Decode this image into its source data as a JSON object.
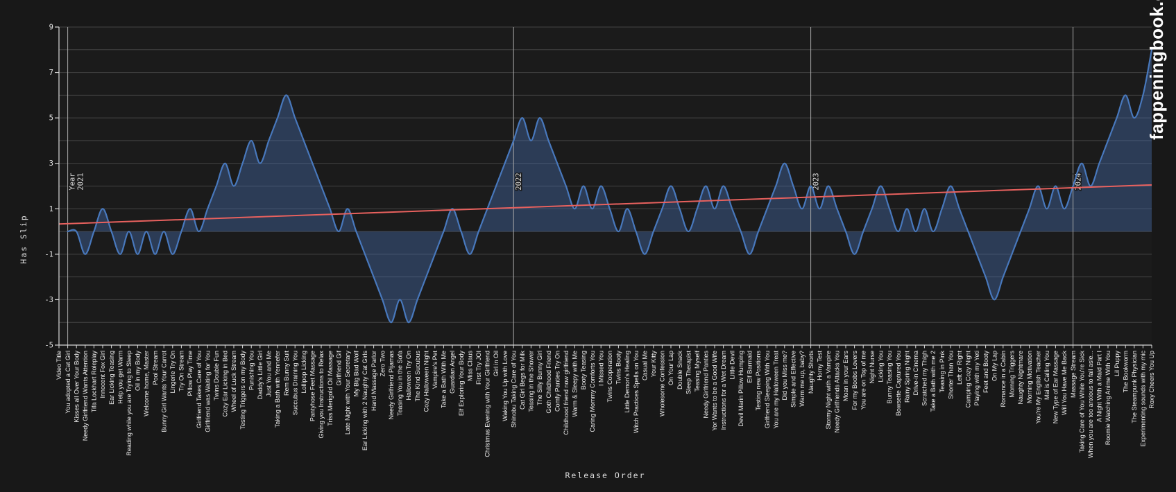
{
  "watermark": "fappeningbook.com",
  "colors": {
    "background": "#181818",
    "plot_background": "#1b1b1b",
    "gridline": "#454545",
    "year_line": "#a9a9a9",
    "axis": "#d8d8d8",
    "text": "#ededed",
    "line": "#4878bc",
    "fill": "rgba(74,120,190,0.36)",
    "trend": "#e8615e"
  },
  "chart_data": {
    "type": "area",
    "title": "",
    "xlabel": "Release Order",
    "ylabel": "Has Slip",
    "ylim": [
      -5,
      9
    ],
    "yticks": [
      9,
      7,
      5,
      3,
      1,
      -1,
      -3,
      -5
    ],
    "grid": true,
    "legend": "none",
    "line_shape": "spline",
    "trend": {
      "start_value": 0.33,
      "end_value": 2.05
    },
    "year_markers": [
      {
        "prefix": "Year",
        "year": "2021",
        "index": 2
      },
      {
        "prefix": "",
        "year": "2022",
        "index": 53
      },
      {
        "prefix": "",
        "year": "2023",
        "index": 87
      },
      {
        "prefix": "",
        "year": "2024",
        "index": 117
      }
    ],
    "categories": [
      "Video Title",
      "You adopted a Cat Girl",
      "Kisses all Over Your Body",
      "Needy Girlfriend Wants Attention",
      "Tifa Lockhart Roleplay",
      "Innocent Fox Girl",
      "Ear Licking Teasing",
      "Help you get Warm",
      "Reading while you are Trying to Sleep",
      "Oil in my Body",
      "Welcome home, Master",
      "Pool Stream",
      "Bunny Girl Wants Your Carrot",
      "Lingerie Try On",
      "Try On Stream",
      "Pillow Play Time",
      "Girlfriend Takes Care of You",
      "Girlfriend was Waiting for You",
      "Twins Double Fun",
      "Cozy Ear Licking in Bed",
      "Wheel of Luck Stream",
      "Testing Triggers on my Body",
      "Punishing You",
      "Daddy's Little Girl",
      "Just You and Me",
      "Taking a Bath with Yennefer",
      "Rem Bunny Suit",
      "Succubus Draining You",
      "Lollipop Licking",
      "Pantyhose Feet Massage",
      "Giving you Instructions to Relax",
      "Triss Merigold Oil Massage",
      "Girlfriend Gif",
      "Late Night with Your Secretary",
      "My Big Bad Wolf",
      "Ear Licking with 2 Naughty Cat Girls",
      "Hand Massage Parlor",
      "Zero Two",
      "Needy Girlfriend Pijamas",
      "Teasing You in the Sofa",
      "Halloween Try On",
      "The Kind Sucubus",
      "Cozy Halloween Night",
      "Vampire's Pet",
      "Take a Bath With Me",
      "Guardian Angel",
      "Elf Exploring Your Body",
      "Miss Claus",
      "First Try JOI",
      "Christmas Evening with Your Girlfriend",
      "Girl in Oil",
      "Waking You Up with Love",
      "Shinobu Taking Care of You",
      "Cat Girl Begs for Milk",
      "Teasing in the Shower",
      "The Silly Bunny Girl",
      "Goth Childhood Friend",
      "Comfy Panties Try On",
      "Childhood friend now girlfriend",
      "Warm & Sleepy with Me",
      "Booty Teasing",
      "Caring Mommy Comforts You",
      "I Missed You",
      "Twins Cooperation",
      "Twins Booty",
      "Little Demon's Healing",
      "Witch Practices Spells on You",
      "Casual Me",
      "Your Kitty",
      "Wholesome Confession",
      "On Your Lap",
      "Double Snack",
      "Sleep Therapist",
      "Teasing Myself",
      "Needy Girlfriend Panties",
      "Yor Wants to be a Good Wife",
      "Instructions for a Wet Dream",
      "Little Devil",
      "Devil Marin Pillow Humping",
      "Elf Barmaid",
      "Testing new Positions",
      "Girlfriend Sleeping With You",
      "You are my Halloween Treat",
      "Did you Miss me?",
      "Simple and Effective",
      "Warm me up, baby?",
      "Naughty Shorts",
      "Horny Test",
      "Stormy Night with a Vampire",
      "Needy Girlfriends Attacks You",
      "Moan in your Ears",
      "For my Boobs Lovers",
      "You are on Top of me",
      "Night Nurse",
      "Licking You",
      "Bunny Teasing You",
      "Bowsette Captured You",
      "Rainy Spring Night",
      "Drive-in Cinema",
      "Scratched my Thigh",
      "Take a Bath with me 2",
      "Teasing in Pink",
      "Shorter Than You",
      "Left or Right",
      "Camping Cozy Night",
      "Playing with my Yeti",
      "Feet and Booty",
      "On My Lap",
      "Romance in a Cabin",
      "Morning Triggers",
      "Naughty Nightmare",
      "Morning Motivation",
      "You're My English Teacher",
      "Mai is Calling You",
      "New Type of Ear Massage",
      "Will You Have Me Back",
      "Massage Stream",
      "Taking Care of You While You're Sick",
      "When you are too anxious to fall asle...",
      "A Night With a Maid Part I",
      "Roomie Watching Anime With You",
      "Lil Puppy",
      "The Bookworm",
      "The Steampunk Physician",
      "Experimenting sounds with my mic",
      "Roxy Cheers You Up"
    ],
    "values": [
      null,
      0,
      0,
      -1,
      0,
      1,
      0,
      -1,
      0,
      -1,
      0,
      -1,
      0,
      -1,
      0,
      1,
      0,
      1,
      2,
      3,
      2,
      3,
      4,
      3,
      4,
      5,
      6,
      5,
      4,
      3,
      2,
      1,
      0,
      1,
      0,
      -1,
      -2,
      -3,
      -4,
      -3,
      -4,
      -3,
      -2,
      -1,
      0,
      1,
      0,
      -1,
      0,
      1,
      2,
      3,
      4,
      5,
      4,
      5,
      4,
      3,
      2,
      1,
      2,
      1,
      2,
      1,
      0,
      1,
      0,
      -1,
      0,
      1,
      2,
      1,
      0,
      1,
      2,
      1,
      2,
      1,
      0,
      -1,
      0,
      1,
      2,
      3,
      2,
      1,
      2,
      1,
      2,
      1,
      0,
      -1,
      0,
      1,
      2,
      1,
      0,
      1,
      0,
      1,
      0,
      1,
      2,
      1,
      0,
      -1,
      -2,
      -3,
      -2,
      -1,
      0,
      1,
      2,
      1,
      2,
      1,
      2,
      3,
      2,
      3,
      4,
      5,
      6,
      5,
      6,
      8
    ]
  }
}
